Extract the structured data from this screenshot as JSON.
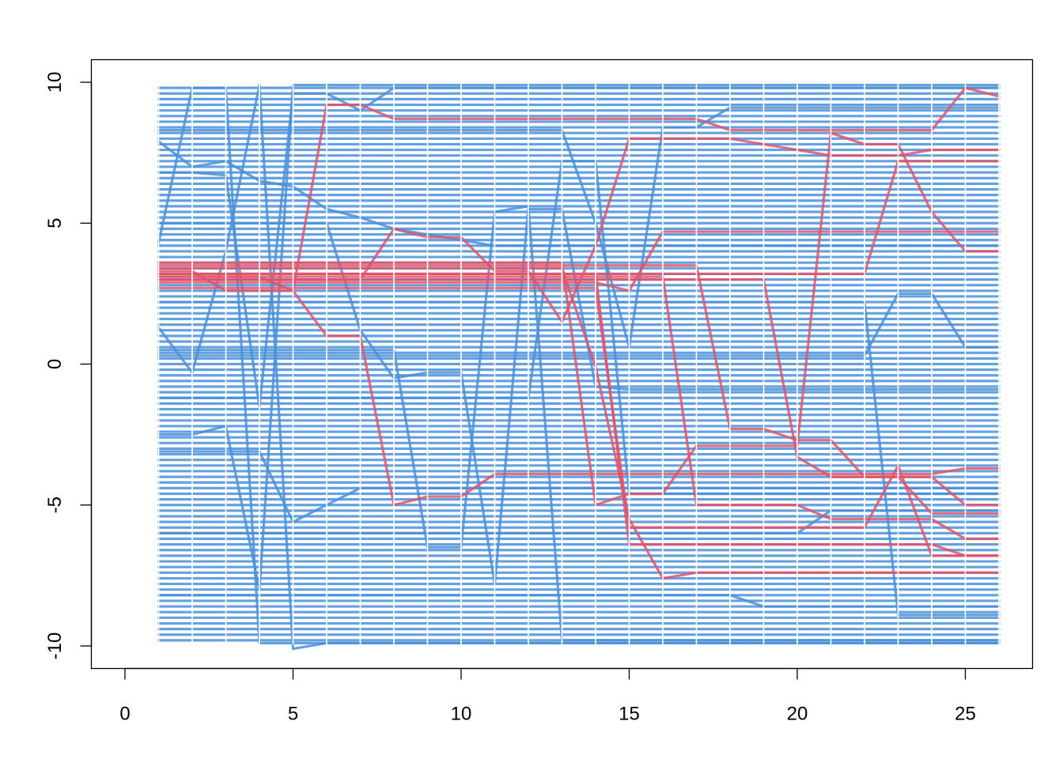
{
  "chart_data": {
    "type": "line",
    "title": "",
    "xlabel": "",
    "ylabel": "",
    "xlim": [
      -1,
      27
    ],
    "ylim": [
      -10.8,
      10.8
    ],
    "x_ticks": [
      0,
      5,
      10,
      15,
      20,
      25
    ],
    "x_tick_labels": [
      "0",
      "5",
      "10",
      "15",
      "20",
      "25"
    ],
    "y_ticks": [
      -10,
      -5,
      0,
      5,
      10
    ],
    "y_tick_labels": [
      "-10",
      "-5",
      "0",
      "5",
      "10"
    ],
    "grid": false,
    "legend": "none",
    "x": [
      1,
      2,
      3,
      4,
      5,
      6,
      7,
      8,
      9,
      10,
      11,
      12,
      13,
      14,
      15,
      16,
      17,
      18,
      19,
      20,
      21,
      22,
      23,
      24,
      25,
      26
    ],
    "colors": {
      "primary": "#4a90d9",
      "highlight": "#df536b"
    },
    "background_series": {
      "color": "#4a90d9",
      "levels": [
        -9.8,
        -9.6,
        -9.4,
        -9.2,
        -9.0,
        -8.8,
        -8.6,
        -8.4,
        -8.2,
        -8.0,
        -7.8,
        -7.6,
        -7.4,
        -7.2,
        -7.0,
        -6.8,
        -6.6,
        -6.4,
        -6.2,
        -6.0,
        -5.8,
        -5.6,
        -5.4,
        -5.2,
        -5.0,
        -4.8,
        -4.6,
        -4.4,
        -4.2,
        -4.0,
        -3.8,
        -3.6,
        -3.4,
        -3.2,
        -3.0,
        -2.8,
        -2.6,
        -2.4,
        -2.2,
        -2.0,
        -1.8,
        -1.6,
        -1.4,
        -1.2,
        -1.0,
        -0.8,
        -0.6,
        -0.4,
        -0.2,
        0.0,
        0.2,
        0.4,
        0.6,
        0.8,
        1.0,
        1.2,
        1.4,
        1.6,
        1.8,
        2.0,
        2.2,
        2.4,
        2.6,
        2.8,
        3.0,
        3.2,
        3.4,
        3.6,
        3.8,
        4.0,
        4.2,
        4.4,
        4.6,
        4.8,
        5.0,
        5.2,
        5.4,
        5.6,
        5.8,
        6.0,
        6.2,
        6.4,
        6.6,
        6.8,
        7.0,
        7.2,
        7.4,
        7.6,
        7.8,
        8.0,
        8.2,
        8.4,
        8.6,
        8.8,
        9.0,
        9.2,
        9.4,
        9.6,
        9.8
      ]
    },
    "series": [
      {
        "color": "#4a90d9",
        "values": [
          4.3,
          9.8,
          9.8,
          -9.9,
          -9.9,
          -9.9,
          -9.9,
          -9.9,
          -9.9,
          -9.9,
          -9.9,
          -9.9,
          -9.9,
          -9.9,
          -9.9,
          -9.9,
          -9.9,
          -9.9,
          -9.9,
          -9.9,
          -9.9,
          -9.9,
          -9.9,
          -9.9,
          -9.9,
          -9.9
        ]
      },
      {
        "color": "#4a90d9",
        "values": [
          -2.5,
          -2.5,
          -2.2,
          -8.0,
          9.9,
          9.9,
          9.9,
          9.9,
          9.9,
          9.9,
          9.9,
          9.9,
          9.9,
          9.9,
          9.9,
          9.9,
          9.9,
          9.9,
          9.9,
          9.9,
          9.9,
          9.9,
          9.9,
          9.9,
          9.9,
          9.9
        ]
      },
      {
        "color": "#4a90d9",
        "values": [
          1.3,
          -0.3,
          4.0,
          9.9,
          -10.1,
          -9.9,
          -9.9,
          -9.9,
          -9.9,
          -9.9,
          -9.9,
          -9.9,
          -9.9,
          -9.9,
          -9.9,
          -9.9,
          -9.9,
          -9.9,
          -9.9,
          -9.9,
          -9.9,
          -9.9,
          -9.9,
          -9.9,
          -9.9,
          -9.9
        ]
      },
      {
        "color": "#4a90d9",
        "values": [
          7.9,
          7.0,
          7.2,
          6.5,
          6.3,
          5.5,
          5.2,
          4.8,
          4.6,
          4.4,
          4.2,
          4.2,
          4.2,
          4.2,
          4.2,
          4.2,
          4.2,
          4.2,
          4.2,
          4.2,
          4.2,
          4.2,
          4.2,
          4.2,
          4.2,
          4.2
        ]
      },
      {
        "color": "#4a90d9",
        "values": [
          6.8,
          6.8,
          6.7,
          -1.5,
          9.6,
          9.6,
          9.0,
          9.8,
          9.8,
          9.8,
          9.8,
          9.8,
          9.8,
          9.8,
          9.8,
          9.8,
          9.8,
          9.8,
          9.8,
          9.8,
          9.8,
          9.8,
          9.8,
          9.8,
          9.8,
          9.8
        ]
      },
      {
        "color": "#4a90d9",
        "values": [
          -3.1,
          -3.1,
          -3.1,
          -3.1,
          -5.6,
          -5.0,
          -4.4,
          -4.4,
          -4.4,
          -4.4,
          -4.4,
          -4.4,
          -4.4,
          -4.4,
          -4.4,
          -4.4,
          -4.4,
          -4.4,
          -4.4,
          -4.4,
          -4.4,
          -4.4,
          -4.4,
          -4.4,
          -4.4,
          -4.4
        ]
      },
      {
        "color": "#4a90d9",
        "values": [
          5.0,
          5.0,
          5.0,
          5.0,
          5.0,
          5.0,
          1.2,
          -0.5,
          -0.3,
          -0.3,
          -7.8,
          5.5,
          5.5,
          -0.8,
          -0.9,
          -0.9,
          -0.9,
          -0.9,
          -0.9,
          -0.9,
          -0.9,
          -0.9,
          -0.9,
          -0.9,
          -0.9,
          -0.9
        ]
      },
      {
        "color": "#4a90d9",
        "values": [
          0.5,
          0.5,
          0.5,
          0.5,
          0.5,
          0.5,
          0.5,
          0.5,
          -6.5,
          -6.5,
          5.4,
          5.6,
          -9.8,
          -9.8,
          -9.8,
          -9.8,
          -9.8,
          -9.8,
          -9.8,
          -9.8,
          -9.8,
          -9.8,
          -9.8,
          -9.8,
          -9.8,
          -9.8
        ]
      },
      {
        "color": "#4a90d9",
        "values": [
          -1.2,
          -1.2,
          -1.2,
          -1.2,
          -1.2,
          -1.2,
          -1.2,
          -1.2,
          -1.2,
          -1.2,
          -1.2,
          -1.2,
          7.2,
          7.2,
          -4.6,
          -4.6,
          -4.6,
          -4.6,
          -4.6,
          -4.6,
          -4.6,
          -4.6,
          -4.6,
          -4.6,
          -4.6,
          -4.6
        ]
      },
      {
        "color": "#4a90d9",
        "values": [
          8.3,
          8.3,
          8.3,
          8.3,
          8.3,
          8.3,
          8.3,
          8.3,
          8.3,
          8.3,
          8.3,
          8.3,
          8.3,
          5.0,
          0.6,
          8.4,
          8.4,
          9.1,
          9.1,
          9.1,
          9.1,
          9.1,
          9.1,
          9.1,
          9.1,
          9.1
        ]
      },
      {
        "color": "#4a90d9",
        "values": [
          -8.2,
          -8.2,
          -8.2,
          -8.2,
          -8.2,
          -8.2,
          -8.2,
          -8.2,
          -8.2,
          -8.2,
          -8.2,
          -8.2,
          -8.2,
          -8.2,
          -8.2,
          -8.2,
          -8.2,
          -8.2,
          -8.6,
          -8.6,
          -8.6,
          -8.6,
          -8.6,
          -8.6,
          -8.6,
          -8.6
        ]
      },
      {
        "color": "#4a90d9",
        "values": [
          2.2,
          2.2,
          2.2,
          2.2,
          2.2,
          2.2,
          2.2,
          2.2,
          2.2,
          2.2,
          2.2,
          2.2,
          2.2,
          2.2,
          2.2,
          2.2,
          2.2,
          2.2,
          2.2,
          2.2,
          2.2,
          2.2,
          -8.9,
          -8.9,
          -8.9,
          -8.9
        ]
      },
      {
        "color": "#4a90d9",
        "values": [
          0.3,
          0.3,
          0.3,
          0.3,
          0.3,
          0.3,
          0.3,
          0.3,
          0.3,
          0.3,
          0.3,
          0.3,
          0.3,
          0.3,
          0.3,
          0.3,
          0.3,
          0.3,
          0.3,
          0.3,
          0.3,
          0.3,
          2.5,
          2.5,
          0.6,
          0.6
        ]
      },
      {
        "color": "#4a90d9",
        "values": [
          -6.0,
          -6.0,
          -6.0,
          -6.0,
          -6.0,
          -6.0,
          -6.0,
          -6.0,
          -6.0,
          -6.0,
          -6.0,
          -6.0,
          -6.0,
          -6.0,
          -6.0,
          -6.0,
          -6.0,
          -6.0,
          -6.0,
          -6.0,
          -5.2,
          -5.2,
          -5.2,
          -5.2,
          -5.2,
          -5.2
        ]
      },
      {
        "color": "#df536b",
        "values": [
          3.1,
          3.1,
          3.1,
          3.1,
          2.6,
          9.2,
          9.2,
          8.7,
          8.7,
          8.7,
          8.7,
          8.7,
          8.7,
          8.7,
          8.7,
          8.7,
          8.7,
          8.3,
          8.3,
          8.3,
          8.3,
          8.3,
          8.3,
          8.3,
          9.8,
          9.5
        ]
      },
      {
        "color": "#df536b",
        "values": [
          3.3,
          3.3,
          2.6,
          2.6,
          2.6,
          1.0,
          1.0,
          -5.0,
          -4.7,
          -4.7,
          -3.9,
          -3.9,
          -3.9,
          -3.9,
          -3.9,
          -3.9,
          -3.9,
          -3.9,
          -3.9,
          -3.9,
          -3.9,
          -3.9,
          -3.9,
          -3.9,
          -3.7,
          -3.7
        ]
      },
      {
        "color": "#df536b",
        "values": [
          3.0,
          3.0,
          3.0,
          3.0,
          3.0,
          3.0,
          3.0,
          4.8,
          4.5,
          4.5,
          3.3,
          3.3,
          1.5,
          4.2,
          8.0,
          8.0,
          8.0,
          8.0,
          7.8,
          7.6,
          7.4,
          7.4,
          7.4,
          7.6,
          7.6,
          7.6
        ]
      },
      {
        "color": "#df536b",
        "values": [
          3.4,
          3.4,
          3.4,
          3.4,
          3.4,
          3.4,
          3.4,
          3.4,
          3.4,
          3.4,
          3.4,
          3.4,
          3.4,
          -0.1,
          -5.5,
          -7.6,
          -7.4,
          -7.4,
          -7.4,
          -7.4,
          -7.4,
          -7.4,
          -7.4,
          -7.4,
          -7.4,
          -7.4
        ]
      },
      {
        "color": "#df536b",
        "values": [
          2.9,
          2.9,
          2.9,
          2.9,
          2.9,
          2.9,
          2.9,
          2.9,
          2.9,
          2.9,
          2.9,
          2.9,
          2.9,
          2.9,
          2.6,
          4.7,
          4.7,
          4.7,
          4.7,
          4.7,
          4.7,
          4.7,
          4.7,
          4.7,
          4.7,
          4.7
        ]
      },
      {
        "color": "#df536b",
        "values": [
          3.6,
          3.6,
          3.6,
          3.6,
          3.6,
          3.6,
          3.6,
          3.6,
          3.6,
          3.6,
          3.6,
          3.6,
          3.6,
          -5.0,
          -4.6,
          -4.6,
          -2.9,
          -2.9,
          -2.9,
          -2.9,
          8.2,
          7.8,
          7.8,
          5.4,
          4.0,
          4.0
        ]
      },
      {
        "color": "#df536b",
        "values": [
          3.2,
          3.2,
          3.2,
          3.2,
          3.2,
          3.2,
          3.2,
          3.2,
          3.2,
          3.2,
          3.2,
          3.2,
          3.2,
          3.2,
          -6.4,
          -6.4,
          -6.4,
          -6.4,
          -6.4,
          -6.4,
          -6.4,
          -6.4,
          -6.4,
          -6.4,
          -6.8,
          -6.8
        ]
      },
      {
        "color": "#df536b",
        "values": [
          3.5,
          3.5,
          3.5,
          3.5,
          3.5,
          3.5,
          3.5,
          3.5,
          3.5,
          3.5,
          3.5,
          3.5,
          3.5,
          3.5,
          3.5,
          3.5,
          3.5,
          -2.3,
          -2.3,
          -2.7,
          -2.7,
          -4.0,
          -4.0,
          -5.3,
          -5.3,
          -5.3
        ]
      },
      {
        "color": "#df536b",
        "values": [
          2.7,
          2.7,
          2.7,
          2.7,
          2.7,
          2.7,
          2.7,
          2.7,
          2.7,
          2.7,
          2.7,
          2.7,
          2.7,
          2.7,
          -5.8,
          -5.8,
          -5.8,
          -5.8,
          -5.8,
          -5.8,
          -5.8,
          -5.8,
          -3.6,
          -6.8,
          -6.8,
          -6.8
        ]
      },
      {
        "color": "#df536b",
        "values": [
          3.1,
          3.1,
          3.1,
          3.1,
          3.1,
          3.1,
          3.1,
          3.1,
          3.1,
          3.1,
          3.1,
          3.1,
          3.1,
          3.1,
          3.1,
          3.1,
          -5.0,
          -5.0,
          -5.0,
          -5.0,
          -5.5,
          -5.5,
          -5.5,
          -5.5,
          -6.2,
          -6.2
        ]
      },
      {
        "color": "#df536b",
        "values": [
          3.2,
          3.2,
          3.2,
          3.2,
          3.2,
          3.2,
          3.2,
          3.2,
          3.2,
          3.2,
          3.2,
          3.2,
          3.2,
          3.2,
          3.2,
          3.2,
          3.2,
          3.2,
          3.2,
          3.2,
          3.2,
          3.2,
          7.2,
          7.2,
          7.2,
          7.2
        ]
      },
      {
        "color": "#df536b",
        "values": [
          3.0,
          3.0,
          3.0,
          3.0,
          3.0,
          3.0,
          3.0,
          3.0,
          3.0,
          3.0,
          3.0,
          3.0,
          3.0,
          3.0,
          3.0,
          3.0,
          3.0,
          3.0,
          3.0,
          -3.3,
          -4.0,
          -4.0,
          -4.0,
          -4.0,
          -5.0,
          -5.0
        ]
      }
    ]
  }
}
